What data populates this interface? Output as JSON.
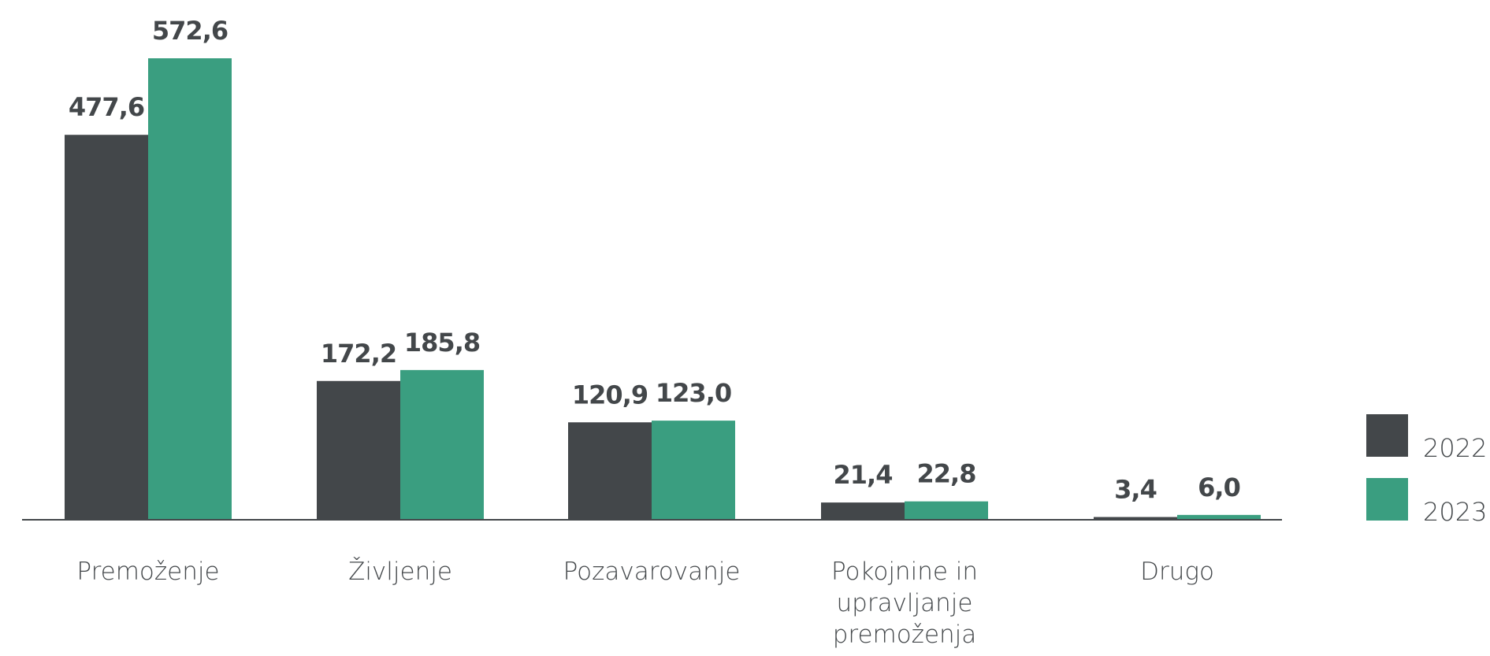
{
  "chart_data": {
    "type": "bar",
    "categories": [
      "Premoženje",
      "Življenje",
      "Pozavarovanje",
      "Pokojnine in upravljanje premoženja",
      "Drugo"
    ],
    "series": [
      {
        "name": "2022",
        "color": "#43474a",
        "values": [
          477.6,
          172.2,
          120.9,
          21.4,
          3.4
        ],
        "value_labels": [
          "477,6",
          "172,2",
          "120,9",
          "21,4",
          "3,4"
        ]
      },
      {
        "name": "2023",
        "color": "#3a9e80",
        "values": [
          572.6,
          185.8,
          123.0,
          22.8,
          6.0
        ],
        "value_labels": [
          "572,6",
          "185,8",
          "123,0",
          "22,8",
          "6,0"
        ]
      }
    ],
    "legend": "right"
  }
}
